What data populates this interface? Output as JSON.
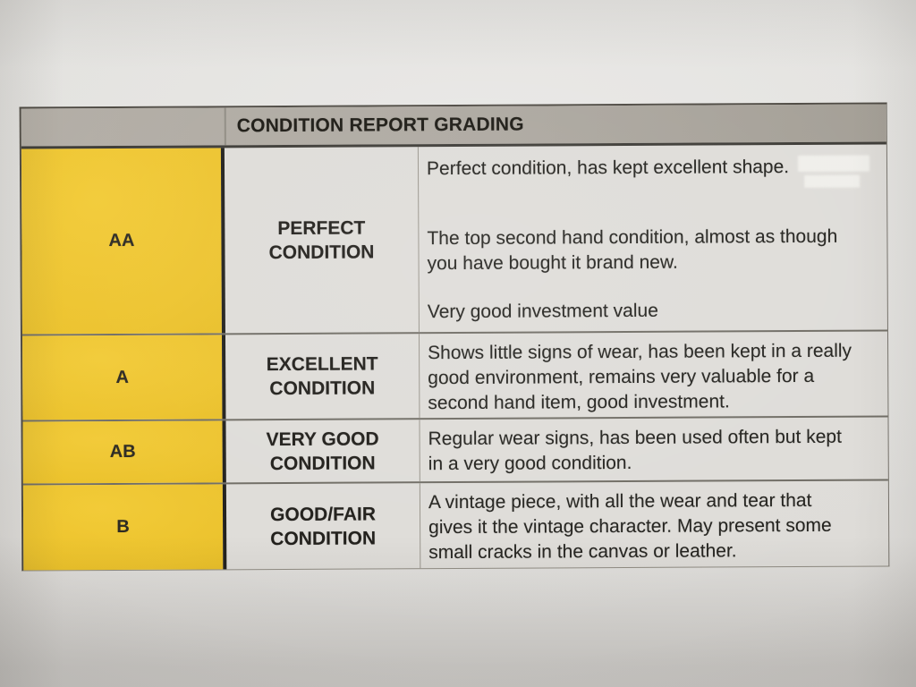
{
  "table": {
    "title": "CONDITION REPORT GRADING",
    "rows": [
      {
        "grade": "AA",
        "condition": "PERFECT CONDITION",
        "descriptions": [
          "Perfect condition, has kept excellent shape.",
          "The top second hand condition, almost as though you have bought it brand new.",
          "Very good investment value"
        ]
      },
      {
        "grade": "A",
        "condition": "EXCELLENT CONDITION",
        "descriptions": [
          "Shows little signs of wear, has been kept in a really good environment, remains very valuable for a second hand item, good investment."
        ]
      },
      {
        "grade": "AB",
        "condition": "VERY GOOD CONDITION",
        "descriptions": [
          "Regular wear signs, has been used often but kept in a very good condition."
        ]
      },
      {
        "grade": "B",
        "condition": "GOOD/FAIR CONDITION",
        "descriptions": [
          "A vintage piece, with all the wear and tear that gives it the vintage character. May present some small cracks in the canvas or leather."
        ]
      }
    ],
    "colors": {
      "grade_column_yellow": "#ecc22a",
      "header_gray": "#aba69e",
      "cell_background": "#dedcd8",
      "paper_background": "#e4e3e1",
      "text": "#1d1b17"
    }
  }
}
